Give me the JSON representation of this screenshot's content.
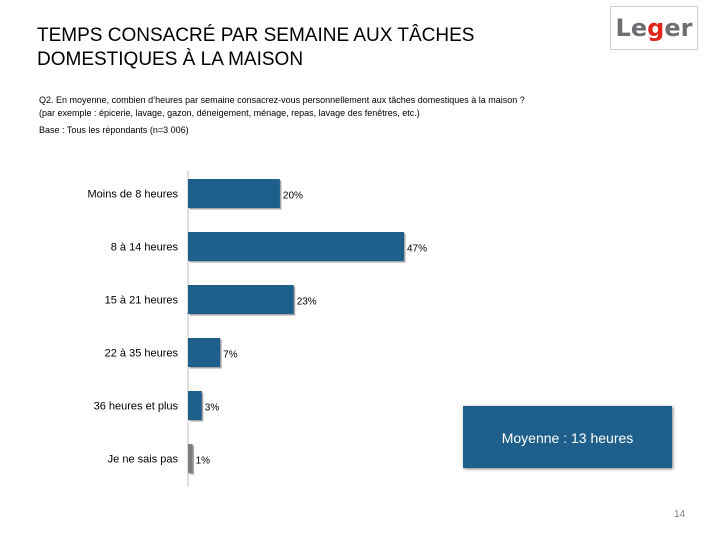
{
  "header": {
    "title_line1": "TEMPS CONSACRÉ PAR SEMAINE AUX TÂCHES",
    "title_line2": "DOMESTIQUES À LA MAISON",
    "logo_pre": "Le",
    "logo_mid": "g",
    "logo_post": "er"
  },
  "question": {
    "id": "Q2.",
    "text": "En moyenne, combien d’heures par semaine consacrez-vous personnellement aux tâches domestiques à la maison ?",
    "example": "(par exemple : épicerie, lavage, gazon, déneigement, ménage, repas, lavage des fenêtres, etc.)",
    "base": "Base : Tous les répondants (n=3 006)"
  },
  "chart_data": {
    "type": "bar",
    "orientation": "horizontal",
    "categories": [
      "Moins de 8 heures",
      "8 à 14 heures",
      "15 à 21 heures",
      "22 à 35 heures",
      "36 heures et plus",
      "Je ne sais pas"
    ],
    "values": [
      20,
      47,
      23,
      7,
      3,
      1
    ],
    "value_labels": [
      "20%",
      "47%",
      "23%",
      "7%",
      "3%",
      "1%"
    ],
    "unit": "%",
    "xlim": [
      0,
      47
    ],
    "bar_color": "#1f5f8b",
    "last_bar_color": "#7f7f7f",
    "title": "",
    "xlabel": "",
    "ylabel": ""
  },
  "average": {
    "label": "Moyenne : 13 heures"
  },
  "footer": {
    "page_number": "14"
  },
  "colors": {
    "accent": "#1f5f8b",
    "logo_grey": "#6d6e71",
    "logo_red": "#e2231a"
  }
}
